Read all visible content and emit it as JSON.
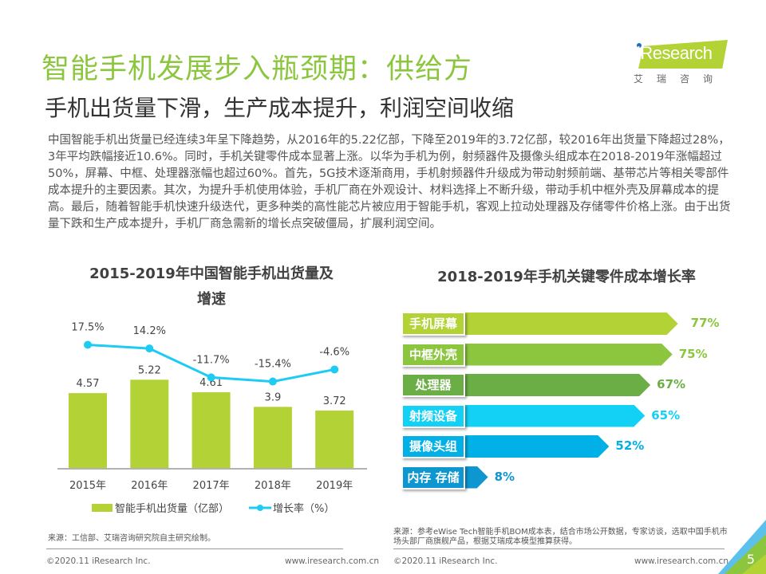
{
  "header": {
    "title": "智能手机发展步入瓶颈期：供给方",
    "subtitle": "手机出货量下滑，生产成本提升，利润空间收缩",
    "logo_brand": "iResearch",
    "logo_cn": "艾瑞咨询"
  },
  "body_text": "中国智能手机出货量已经连续3年呈下降趋势，从2016年的5.22亿部，下降至2019年的3.72亿部，较2016年出货量下降超过28%，3年平均跌幅接近10.6%。同时，手机关键零件成本显著上涨。以华为手机为例，射频器件及摄像头组成本在2018-2019年涨幅超过50%，屏幕、中框、处理器涨幅也超过60%。首先，5G技术逐渐商用，手机射频器件升级成为带动射频前端、基带芯片等相关零部件成本提升的主要因素。其次，为提升手机使用体验，手机厂商在外观设计、材料选择上不断升级，带动手机中框外壳及屏幕成本的提高。最后，随着智能手机快速升级迭代，更多种类的高性能芯片被应用于智能手机，客观上拉动处理器及存储零件价格上涨。由于出货量下跌和生产成本提升，手机厂商急需新的增长点突破僵局，扩展利润空间。",
  "chart_data": [
    {
      "type": "bar",
      "title": "2015-2019年中国智能手机出货量及增速",
      "title_line1": "2015-2019年中国智能手机出货量及",
      "title_line2": "增速",
      "categories": [
        "2015年",
        "2016年",
        "2017年",
        "2018年",
        "2019年"
      ],
      "series": [
        {
          "name": "智能手机出货量（亿部）",
          "type": "bar",
          "values": [
            4.57,
            5.22,
            4.61,
            3.9,
            3.72
          ],
          "labels": [
            "4.57",
            "5.22",
            "4.61",
            "3.9",
            "3.72"
          ],
          "color": "#b2d235"
        },
        {
          "name": "增长率（%）",
          "type": "line",
          "values": [
            17.5,
            14.2,
            -11.7,
            -15.4,
            -4.6
          ],
          "labels": [
            "17.5%",
            "14.2%",
            "-11.7%",
            "-15.4%",
            "-4.6%"
          ],
          "color": "#1ecbf2"
        }
      ],
      "legend": [
        "智能手机出货量（亿部）",
        "增长率（%）"
      ],
      "legend_position": "bottom",
      "xlabel": "",
      "ylabel": "",
      "grid": false
    },
    {
      "type": "bar",
      "orientation": "horizontal",
      "title": "2018-2019年手机关键零件成本增长率",
      "categories": [
        "手机屏幕",
        "中框外壳",
        "处理器",
        "射频设备",
        "摄像头组",
        "内存 存储"
      ],
      "values": [
        77,
        75,
        67,
        65,
        52,
        8
      ],
      "labels": [
        "77%",
        "75%",
        "67%",
        "65%",
        "52%",
        "8%"
      ],
      "colors": [
        "#b2d235",
        "#8cc63f",
        "#6aae45",
        "#13d0f5",
        "#00b0e6",
        "#0d96d0"
      ],
      "unit": "%",
      "grid": false
    }
  ],
  "footer": {
    "source_left": "来源：工信部、艾瑞咨询研究院自主研究绘制。",
    "source_right": "来源：参考eWise Tech智能手机BOM成本表，结合市场公开数据，专家访谈，选取中国手机市场头部厂商旗舰产品，根据艾瑞成本模型推算获得。",
    "copyright_left": "©2020.11 iResearch Inc.",
    "url_left": "www.iresearch.com.cn",
    "copyright_right": "©2020.11 iResearch Inc.",
    "url_right": "www.iresearch.com.cn",
    "page_number": "5"
  }
}
